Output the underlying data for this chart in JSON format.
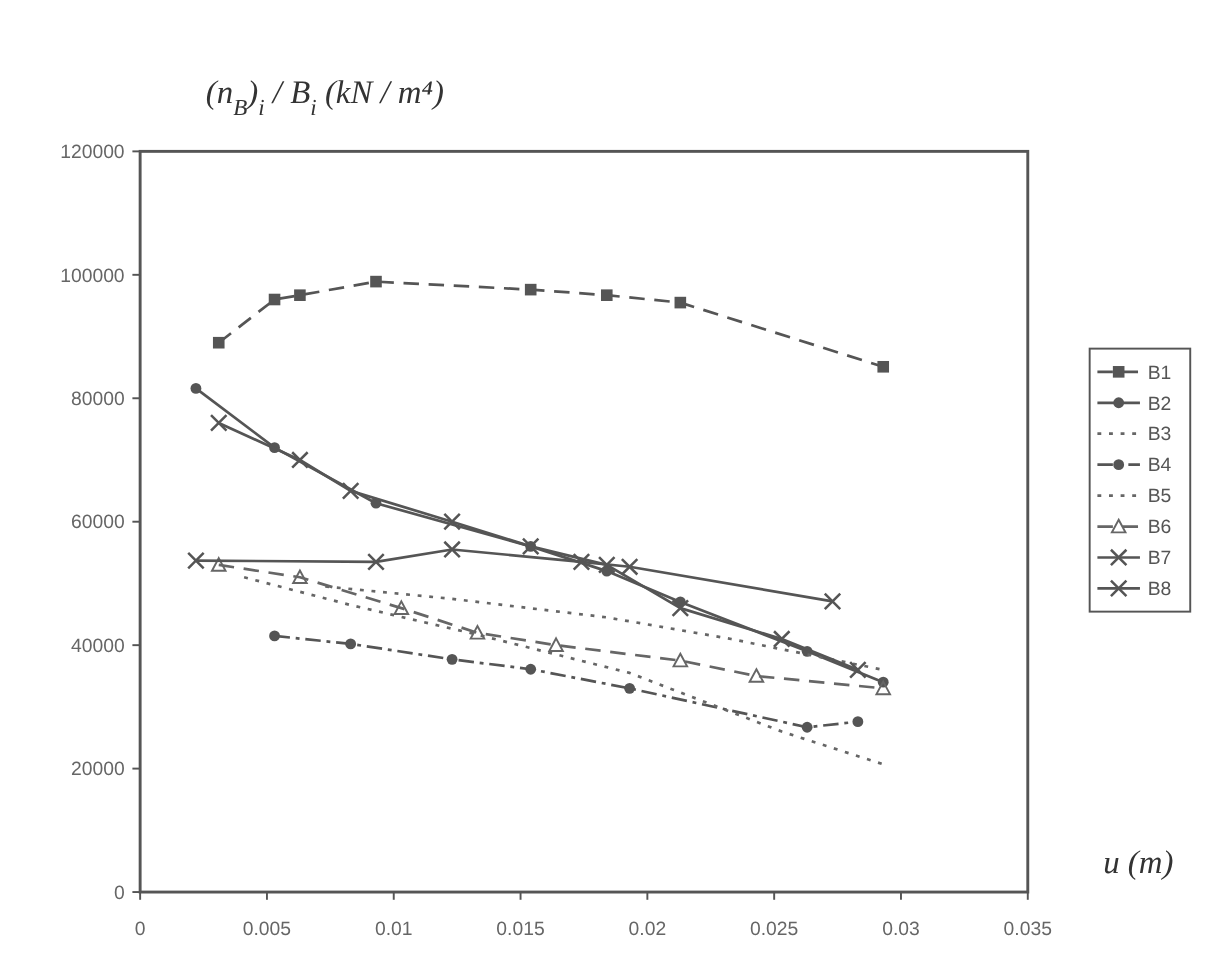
{
  "chart_data": {
    "type": "line",
    "ylabel": "(n$_{B}$)$_{i}$ / B$_{i}$ (kN / m⁴)",
    "xlabel": "u (m)",
    "xlim": [
      0,
      0.035
    ],
    "xticks": [
      0,
      0.005,
      0.01,
      0.015,
      0.02,
      0.025,
      0.03,
      0.035
    ],
    "ylim": [
      0,
      120000
    ],
    "yticks": [
      0,
      20000,
      40000,
      60000,
      80000,
      {
        "value": 100000,
        "label": "100000"
      },
      120000
    ],
    "grid": false,
    "legend": "right",
    "series": [
      {
        "name": "B1",
        "color": "#555555",
        "line_style": "dashed",
        "marker": "square",
        "x": [
          0.0031,
          0.0053,
          0.0063,
          0.0093,
          0.0154,
          0.0184,
          0.0213,
          0.0293
        ],
        "values": [
          89000,
          96000,
          96700,
          98900,
          97600,
          96700,
          95500,
          85100
        ]
      },
      {
        "name": "B2",
        "color": "#555555",
        "line_style": "solid",
        "marker": "circle",
        "x": [
          0.0022,
          0.0053,
          0.0093,
          0.0154,
          0.0184,
          0.0213,
          0.0263,
          0.0293
        ],
        "values": [
          81600,
          72000,
          63000,
          56000,
          52000,
          47000,
          39000,
          34000
        ]
      },
      {
        "name": "B3",
        "color": "#666666",
        "line_style": "dotted",
        "marker": "none",
        "x": [
          0.0073,
          0.0123,
          0.0184,
          0.0233,
          0.0293
        ],
        "values": [
          49500,
          47500,
          44500,
          41000,
          36000
        ]
      },
      {
        "name": "B4",
        "color": "#555555",
        "line_style": "dashdot",
        "marker": "circle",
        "x": [
          0.0053,
          0.0083,
          0.0123,
          0.0154,
          0.0193,
          0.0263,
          0.0283
        ],
        "values": [
          41500,
          40200,
          37700,
          36100,
          33000,
          26700,
          27600
        ]
      },
      {
        "name": "B5",
        "color": "#666666",
        "line_style": "dotted",
        "marker": "none",
        "x": [
          0.0041,
          0.0083,
          0.0133,
          0.0193,
          0.0253,
          0.0293
        ],
        "values": [
          51000,
          46500,
          41700,
          35500,
          26000,
          20700
        ]
      },
      {
        "name": "B6",
        "color": "#666666",
        "line_style": "dashed",
        "marker": "triangle",
        "x": [
          0.0031,
          0.0063,
          0.0103,
          0.0133,
          0.0164,
          0.0213,
          0.0243,
          0.0293
        ],
        "values": [
          53000,
          51000,
          46000,
          42000,
          40000,
          37500,
          35000,
          33000
        ]
      },
      {
        "name": "B7",
        "color": "#555555",
        "line_style": "solid",
        "marker": "cross",
        "x": [
          0.0031,
          0.0063,
          0.0083,
          0.0123,
          0.0154,
          0.0184,
          0.0213,
          0.0253,
          0.0283
        ],
        "values": [
          76000,
          70000,
          65000,
          60000,
          56000,
          53000,
          46000,
          41000,
          36000
        ]
      },
      {
        "name": "B8",
        "color": "#555555",
        "line_style": "solid",
        "marker": "cross",
        "x": [
          0.0022,
          0.0093,
          0.0123,
          0.0174,
          0.0193,
          0.0273
        ],
        "values": [
          53700,
          53500,
          55500,
          53500,
          52700,
          47100
        ]
      }
    ]
  }
}
